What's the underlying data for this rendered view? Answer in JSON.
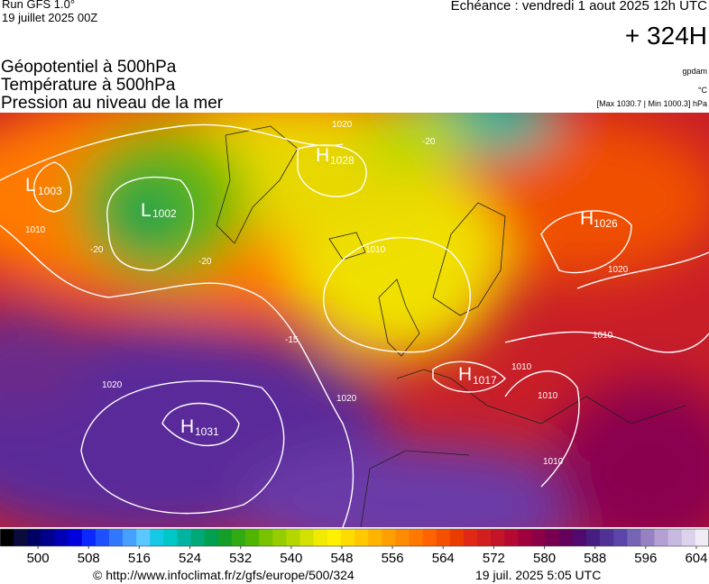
{
  "header": {
    "model": "Run GFS 1.0°",
    "run": "19 juillet 2025 00Z",
    "valid": "Echéance : vendredi 1 aout 2025 12h UTC",
    "lead": "+ 324H"
  },
  "titles": [
    "Géopotentiel à 500hPa",
    "Température à 500hPa",
    "Pression au niveau de la mer"
  ],
  "units": [
    "gpdam",
    "°C",
    "[Max 1030.7 | Min 1000.3] hPa"
  ],
  "centers": [
    {
      "letter": "L",
      "value": 1003
    },
    {
      "letter": "L",
      "value": 1002
    },
    {
      "letter": "H",
      "value": 1028
    },
    {
      "letter": "H",
      "value": 1026
    },
    {
      "letter": "H",
      "value": 1017
    },
    {
      "letter": "H",
      "value": 1031
    }
  ],
  "isobar_labels": [
    "1010",
    "1010",
    "1020",
    "1020",
    "1020",
    "1010",
    "1010",
    "1010",
    "1010",
    "1020",
    "-20",
    "-20",
    "-20",
    "-15"
  ],
  "colorbar": {
    "range": [
      494,
      606
    ],
    "ticks": [
      500,
      508,
      516,
      524,
      532,
      540,
      548,
      556,
      564,
      572,
      580,
      588,
      596,
      604
    ],
    "colors": [
      "#000000",
      "#0a0a3c",
      "#000064",
      "#00008c",
      "#0000b4",
      "#0000dc",
      "#0a28ff",
      "#1e50ff",
      "#3278ff",
      "#46a0ff",
      "#5ac8ff",
      "#14c8e6",
      "#00c8c8",
      "#00b4a0",
      "#00aa78",
      "#00a050",
      "#14a028",
      "#32aa14",
      "#50b400",
      "#78c300",
      "#96cd00",
      "#b4d700",
      "#d2e100",
      "#f0eb00",
      "#fff000",
      "#ffdc00",
      "#ffc800",
      "#ffb400",
      "#ffa000",
      "#ff8c00",
      "#ff7800",
      "#ff6400",
      "#f55000",
      "#eb3c00",
      "#e12814",
      "#d21e1e",
      "#c31428",
      "#b40a32",
      "#a0003c",
      "#8c0046",
      "#780050",
      "#64005a",
      "#500a6e",
      "#461e82",
      "#503296",
      "#5a46aa",
      "#7864b4",
      "#9682c3",
      "#b4a0d2",
      "#c8b9e1",
      "#dcd2eb",
      "#f0ebf5"
    ]
  },
  "footer": {
    "url": "© http://www.infoclimat.fr/z/gfs/europe/500/324",
    "timestamp": "19 juil. 2025  5:05 UTC"
  }
}
